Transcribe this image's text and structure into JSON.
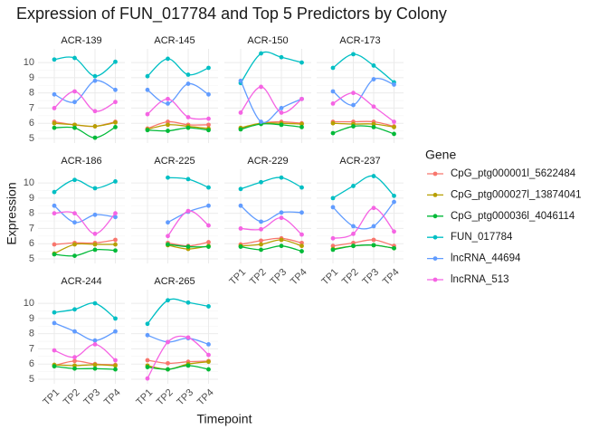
{
  "chart_data": {
    "type": "line",
    "title": "Expression of FUN_017784 and Top 5 Predictors by Colony",
    "x_label": "Timepoint",
    "y_label": "Expression",
    "legend_title": "Gene",
    "categories": [
      "TP1",
      "TP2",
      "TP3",
      "TP4"
    ],
    "ylim": [
      4.7,
      10.9
    ],
    "yticks": [
      5,
      6,
      7,
      8,
      9,
      10
    ],
    "grid": true,
    "series": [
      {
        "name": "CpG_ptg000001l_5622484",
        "color": "#F8766D"
      },
      {
        "name": "CpG_ptg000027l_13874041",
        "color": "#B79F00"
      },
      {
        "name": "CpG_ptg000036l_4046114",
        "color": "#00BA38"
      },
      {
        "name": "FUN_017784",
        "color": "#00BFC4"
      },
      {
        "name": "lncRNA_44694",
        "color": "#619CFF"
      },
      {
        "name": "lncRNA_513",
        "color": "#F564E3"
      }
    ],
    "panels": [
      {
        "title": "ACR-139",
        "values": [
          [
            6.1,
            5.9,
            5.8,
            6.1
          ],
          [
            6.0,
            5.9,
            5.8,
            6.05
          ],
          [
            5.7,
            5.7,
            5.05,
            5.75
          ],
          [
            10.2,
            10.3,
            9.1,
            10.05
          ],
          [
            7.9,
            7.4,
            8.8,
            8.2
          ],
          [
            7.0,
            8.1,
            6.8,
            7.4
          ]
        ]
      },
      {
        "title": "ACR-145",
        "values": [
          [
            5.65,
            6.1,
            5.9,
            5.9
          ],
          [
            5.6,
            5.9,
            5.8,
            5.65
          ],
          [
            5.55,
            5.5,
            5.7,
            5.55
          ],
          [
            9.1,
            10.25,
            9.2,
            9.65
          ],
          [
            8.2,
            7.3,
            8.6,
            7.9
          ],
          [
            6.6,
            7.6,
            6.4,
            6.3
          ]
        ]
      },
      {
        "title": "ACR-150",
        "values": [
          [
            5.65,
            6.0,
            6.1,
            6.0
          ],
          [
            5.7,
            6.0,
            6.0,
            5.95
          ],
          [
            5.6,
            5.95,
            5.9,
            5.75
          ],
          [
            8.65,
            10.6,
            10.35,
            10.0
          ],
          [
            8.8,
            6.1,
            7.0,
            7.6
          ],
          [
            6.7,
            8.4,
            6.7,
            7.6
          ]
        ]
      },
      {
        "title": "ACR-173",
        "values": [
          [
            6.1,
            6.1,
            6.1,
            5.8
          ],
          [
            6.0,
            5.95,
            5.95,
            5.75
          ],
          [
            5.35,
            5.8,
            5.75,
            5.3
          ],
          [
            9.65,
            10.55,
            9.8,
            8.7
          ],
          [
            8.1,
            7.2,
            8.9,
            8.55
          ],
          [
            7.3,
            8.0,
            7.1,
            6.1
          ]
        ]
      },
      {
        "title": "ACR-186",
        "values": [
          [
            5.95,
            6.05,
            6.05,
            6.25
          ],
          [
            5.35,
            5.95,
            5.95,
            5.95
          ],
          [
            5.3,
            5.2,
            5.6,
            5.55
          ],
          [
            9.4,
            10.2,
            9.65,
            10.1
          ],
          [
            8.5,
            7.4,
            7.9,
            7.75
          ],
          [
            8.0,
            8.0,
            6.65,
            8.0
          ]
        ]
      },
      {
        "title": "ACR-225",
        "values": [
          [
            null,
            6.05,
            5.85,
            6.1
          ],
          [
            null,
            5.9,
            5.65,
            5.85
          ],
          [
            null,
            5.95,
            5.8,
            5.8
          ],
          [
            null,
            10.35,
            10.25,
            9.7
          ],
          [
            null,
            7.4,
            8.1,
            8.5
          ],
          [
            null,
            6.5,
            8.15,
            7.2
          ]
        ]
      },
      {
        "title": "ACR-229",
        "values": [
          [
            5.95,
            6.2,
            6.35,
            6.05
          ],
          [
            5.85,
            5.95,
            6.25,
            5.85
          ],
          [
            5.8,
            5.6,
            5.85,
            5.5
          ],
          [
            9.6,
            10.05,
            10.35,
            9.7
          ],
          [
            8.5,
            7.45,
            8.05,
            8.05
          ],
          [
            7.0,
            6.95,
            7.7,
            6.6
          ]
        ]
      },
      {
        "title": "ACR-237",
        "values": [
          [
            5.85,
            6.05,
            6.25,
            5.85
          ],
          [
            5.65,
            5.85,
            5.9,
            5.7
          ],
          [
            5.6,
            5.85,
            5.9,
            5.7
          ],
          [
            9.0,
            9.8,
            10.45,
            9.15
          ],
          [
            8.4,
            7.15,
            7.15,
            8.75
          ],
          [
            6.35,
            6.65,
            8.35,
            6.8
          ]
        ]
      },
      {
        "title": "ACR-244",
        "values": [
          [
            5.9,
            6.2,
            6.0,
            5.95
          ],
          [
            5.95,
            5.9,
            5.95,
            5.9
          ],
          [
            5.85,
            5.7,
            5.7,
            5.65
          ],
          [
            9.4,
            9.6,
            10.0,
            9.0
          ],
          [
            8.7,
            8.15,
            7.55,
            8.15
          ],
          [
            6.9,
            6.45,
            7.3,
            6.25
          ]
        ]
      },
      {
        "title": "ACR-265",
        "values": [
          [
            6.25,
            6.05,
            6.15,
            6.2
          ],
          [
            5.9,
            5.65,
            6.0,
            6.15
          ],
          [
            5.8,
            5.65,
            5.9,
            5.65
          ],
          [
            8.65,
            10.2,
            10.05,
            9.8
          ],
          [
            7.9,
            7.45,
            7.7,
            7.3
          ],
          [
            5.05,
            7.45,
            7.75,
            6.6
          ]
        ]
      }
    ]
  }
}
